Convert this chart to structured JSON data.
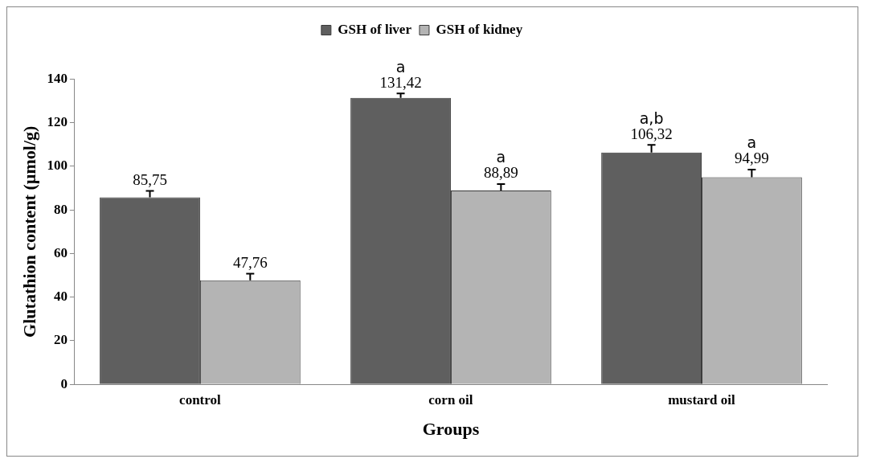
{
  "chart_data": {
    "type": "bar",
    "xlabel": "Groups",
    "ylabel": "Glutathion content (µmol/g)",
    "categories": [
      "control",
      "corn oil",
      "mustard oil"
    ],
    "series": [
      {
        "name": "GSH of liver",
        "color": "#5f5f5f",
        "values": [
          85.75,
          131.42,
          106.32
        ],
        "value_labels": [
          "85,75",
          "131,42",
          "106,32"
        ],
        "errors": [
          [
            85.75,
            88.75
          ],
          [
            131.42,
            133.42
          ],
          [
            106.32,
            109.82
          ]
        ]
      },
      {
        "name": "GSH of kidney",
        "color": "#b4b4b4",
        "values": [
          47.76,
          88.89,
          94.99
        ],
        "value_labels": [
          "47,76",
          "88,89",
          "94,99"
        ],
        "errors": [
          [
            47.76,
            50.76
          ],
          [
            88.89,
            91.89
          ],
          [
            94.99,
            98.49
          ]
        ]
      }
    ],
    "ylim": [
      0,
      140
    ],
    "yticks": [
      0,
      20,
      40,
      60,
      80,
      100,
      120,
      140
    ],
    "grid": false,
    "legend": "top",
    "annotations": [
      "a",
      "a",
      "a,b",
      "a"
    ]
  }
}
